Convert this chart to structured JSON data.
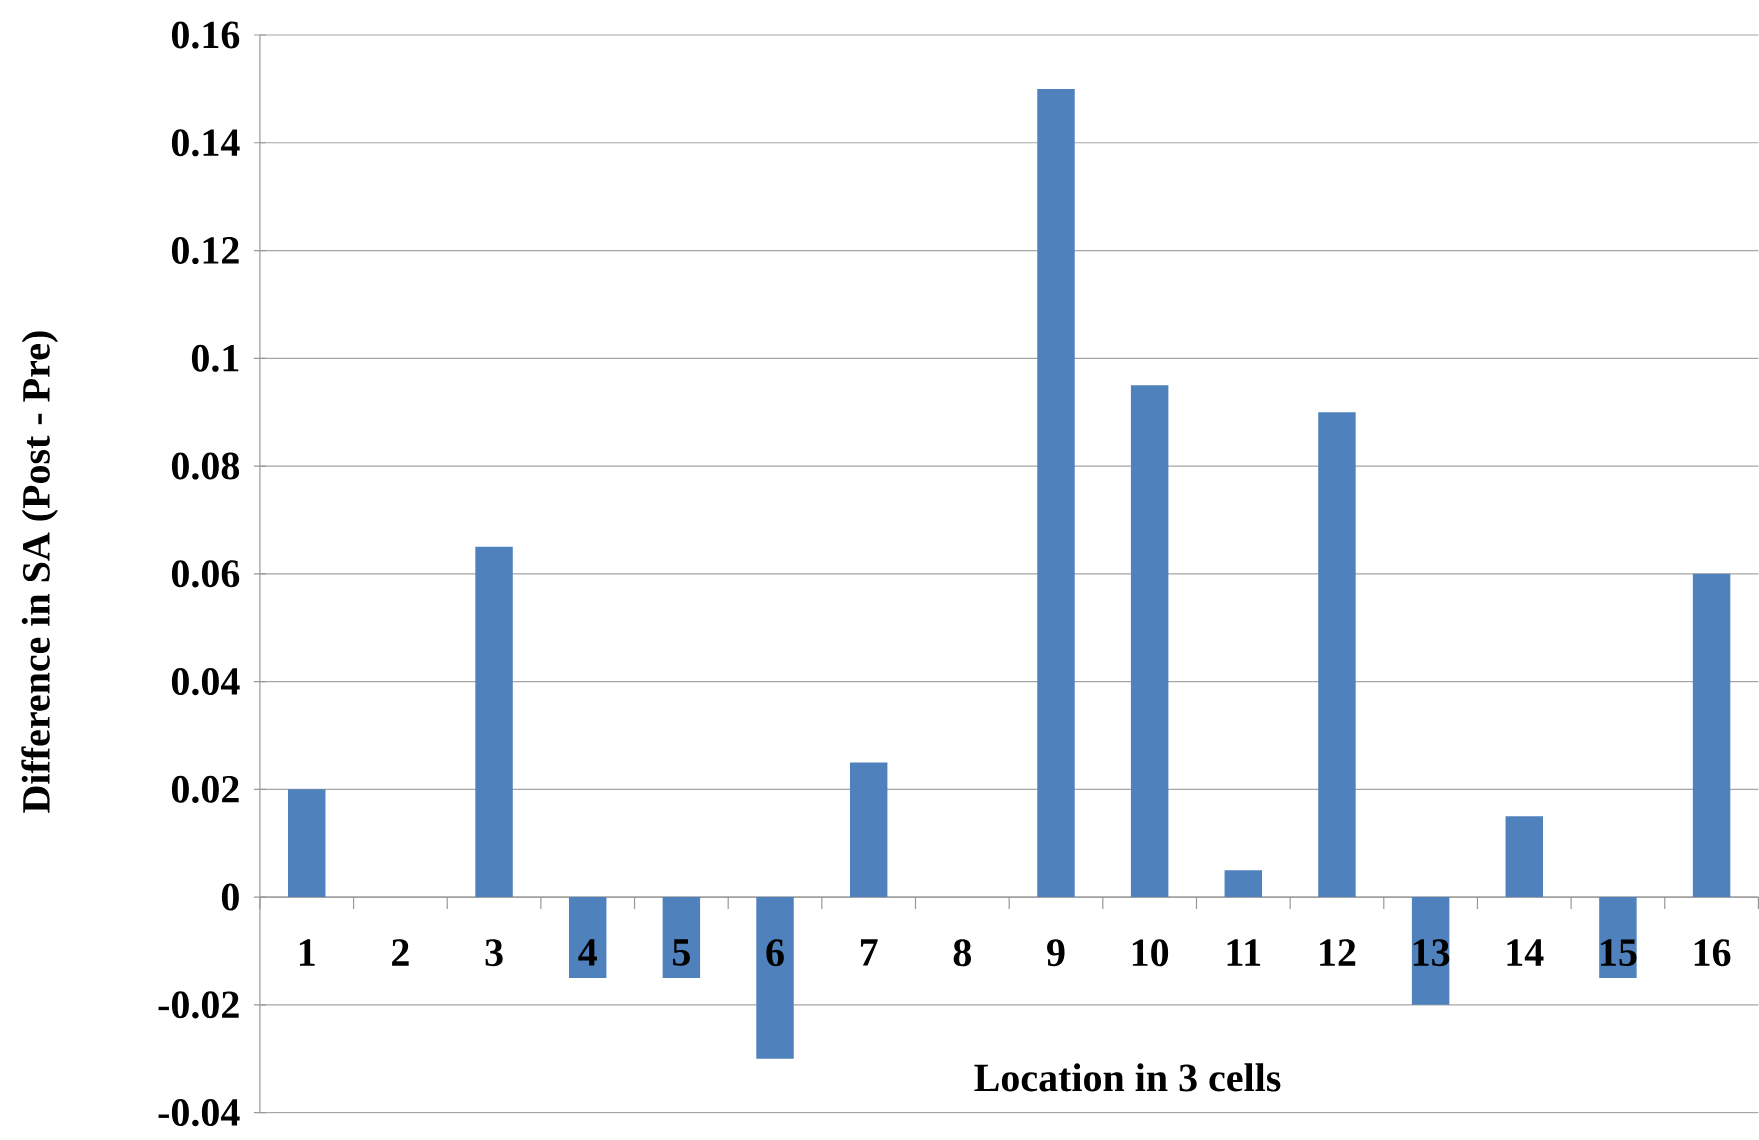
{
  "chart_data": {
    "type": "bar",
    "xlabel": "Location in 3 cells",
    "ylabel": "Difference in SA (Post - Pre)",
    "categories": [
      "1",
      "2",
      "3",
      "4",
      "5",
      "6",
      "7",
      "8",
      "9",
      "10",
      "11",
      "12",
      "13",
      "14",
      "15",
      "16"
    ],
    "values": [
      0.02,
      0,
      0.065,
      -0.015,
      -0.015,
      -0.03,
      0.025,
      0,
      0.15,
      0.095,
      0.005,
      0.09,
      -0.02,
      0.015,
      -0.015,
      0.06
    ],
    "color": "#4f81bd",
    "ylim": [
      -0.04,
      0.16
    ],
    "yticks": [
      -0.04,
      -0.02,
      0,
      0.02,
      0.04,
      0.06,
      0.08,
      0.1,
      0.12,
      0.14,
      0.16
    ],
    "grid": "y"
  }
}
